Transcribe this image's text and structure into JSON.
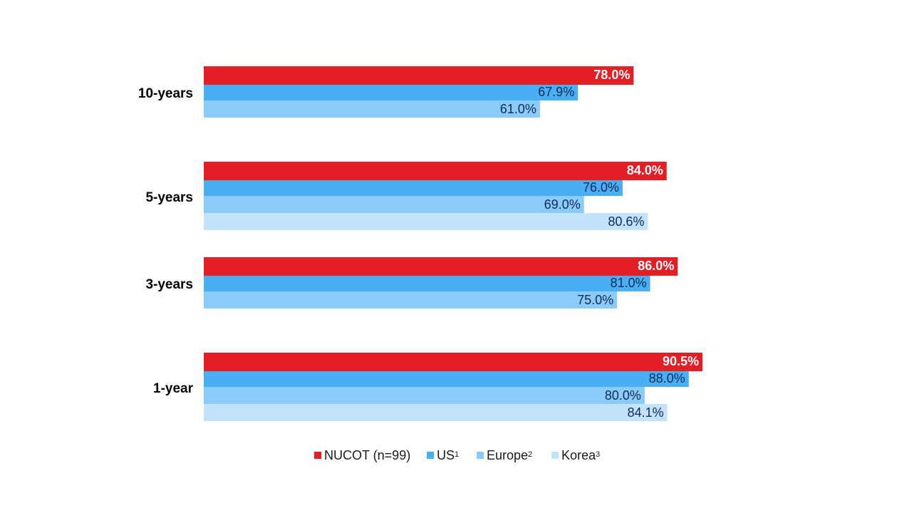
{
  "chart_data": {
    "type": "bar",
    "orientation": "horizontal",
    "categories": [
      "10-years",
      "5-years",
      "3-years",
      "1-year"
    ],
    "series": [
      {
        "name": "NUCOT (n=99)",
        "color": "#e31e24",
        "label_color": "#ffffff",
        "bold": true,
        "values": [
          78.0,
          84.0,
          86.0,
          90.5
        ],
        "labels": [
          "78.0%",
          "84.0%",
          "86.0%",
          "90.5%"
        ]
      },
      {
        "name": "US",
        "sup": "1",
        "color": "#4aaff2",
        "label_color": "#0c2a5c",
        "bold": false,
        "values": [
          67.9,
          76.0,
          81.0,
          88.0
        ],
        "labels": [
          "67.9%",
          "76.0%",
          "81.0%",
          "88.0%"
        ]
      },
      {
        "name": "Europe",
        "sup": "2",
        "color": "#8acbf7",
        "label_color": "#0c2a5c",
        "bold": false,
        "values": [
          61.0,
          69.0,
          75.0,
          80.0
        ],
        "labels": [
          "61.0%",
          "69.0%",
          "75.0%",
          "80.0%"
        ]
      },
      {
        "name": "Korea",
        "sup": "3",
        "color": "#c3e3fa",
        "label_color": "#0c2a5c",
        "bold": false,
        "values": [
          null,
          80.6,
          null,
          84.1
        ],
        "labels": [
          "",
          "80.6%",
          "",
          "84.1%"
        ]
      }
    ],
    "xlim": [
      0,
      100
    ],
    "grid": false,
    "legend_position": "bottom"
  }
}
